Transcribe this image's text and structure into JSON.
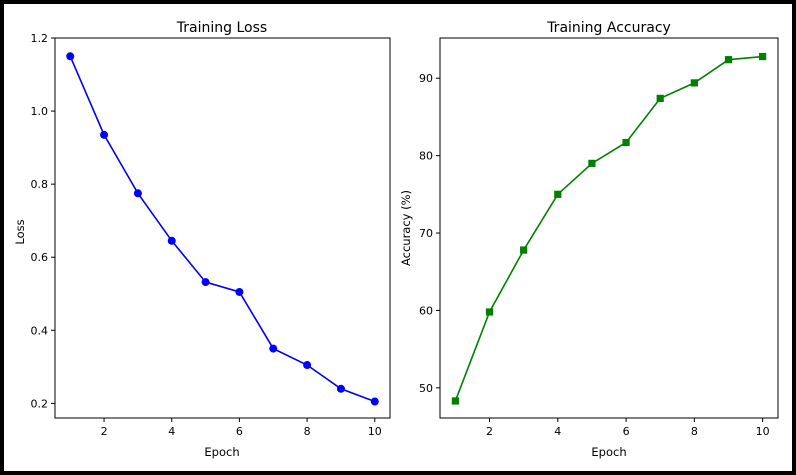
{
  "colors": {
    "loss_series": "#0000ff",
    "accuracy_series": "#008000",
    "axes": "#000000",
    "frame": "#000000"
  },
  "chart_data": [
    {
      "type": "line",
      "title": "Training Loss",
      "xlabel": "Epoch",
      "ylabel": "Loss",
      "x": [
        1,
        2,
        3,
        4,
        5,
        6,
        7,
        8,
        9,
        10
      ],
      "series": [
        {
          "values": [
            1.15,
            0.935,
            0.775,
            0.645,
            0.532,
            0.505,
            0.35,
            0.305,
            0.24,
            0.205
          ],
          "color": "#0000ff",
          "marker": "circle"
        }
      ],
      "xlim": [
        0.55,
        10.45
      ],
      "ylim": [
        0.16,
        1.2
      ],
      "xticks": [
        2,
        4,
        6,
        8,
        10
      ],
      "yticks": [
        0.2,
        0.4,
        0.6,
        0.8,
        1.0,
        1.2
      ],
      "xtick_labels": [
        "2",
        "4",
        "6",
        "8",
        "10"
      ],
      "ytick_labels": [
        "0.2",
        "0.4",
        "0.6",
        "0.8",
        "1.0",
        "1.2"
      ],
      "grid": false,
      "legend": "none"
    },
    {
      "type": "line",
      "title": "Training Accuracy",
      "xlabel": "Epoch",
      "ylabel": "Accuracy (%)",
      "x": [
        1,
        2,
        3,
        4,
        5,
        6,
        7,
        8,
        9,
        10
      ],
      "series": [
        {
          "values": [
            48.3,
            59.8,
            67.8,
            75.0,
            79.0,
            81.7,
            87.4,
            89.4,
            92.4,
            92.8
          ],
          "color": "#008000",
          "marker": "square"
        }
      ],
      "xlim": [
        0.55,
        10.45
      ],
      "ylim": [
        46.1,
        95.2
      ],
      "xticks": [
        2,
        4,
        6,
        8,
        10
      ],
      "yticks": [
        50,
        60,
        70,
        80,
        90
      ],
      "xtick_labels": [
        "2",
        "4",
        "6",
        "8",
        "10"
      ],
      "ytick_labels": [
        "50",
        "60",
        "70",
        "80",
        "90"
      ],
      "grid": false,
      "legend": "none"
    }
  ]
}
